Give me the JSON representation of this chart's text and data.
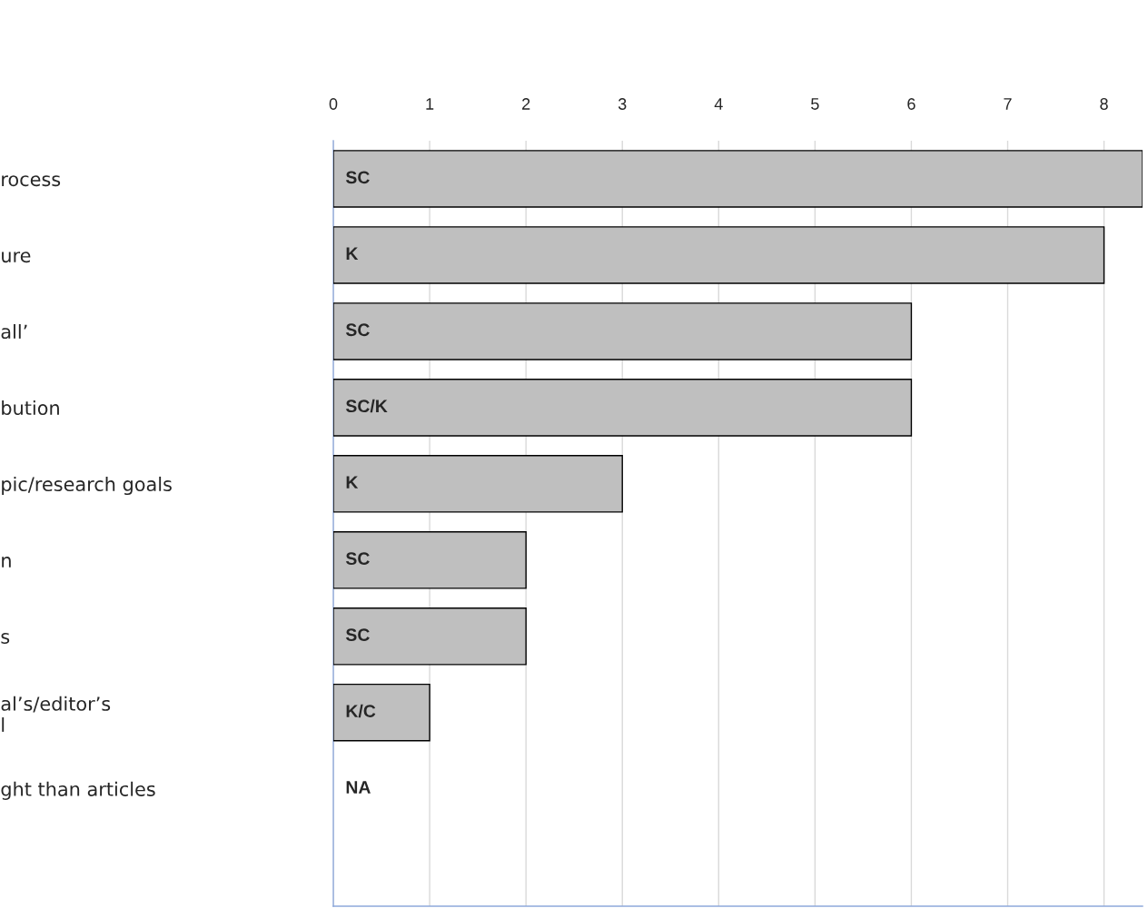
{
  "chart_data": {
    "type": "bar",
    "orientation": "horizontal",
    "categories": [
      "rocess",
      "ure",
      "all’",
      "bution",
      "pic/research goals",
      "n",
      "s",
      "al’s/editor’s\nl",
      "ght than articles"
    ],
    "values": [
      8.4,
      8,
      6,
      6,
      3,
      2,
      2,
      1,
      0
    ],
    "value_labels": [
      "SC",
      "K",
      "SC",
      "SC/K",
      "K",
      "SC",
      "SC",
      "K/C",
      "NA"
    ],
    "color": "#bfbfbf",
    "xlim": [
      0,
      8.4
    ],
    "xticks": [
      0,
      1,
      2,
      3,
      4,
      5,
      6,
      7,
      8
    ],
    "grid": "x"
  }
}
